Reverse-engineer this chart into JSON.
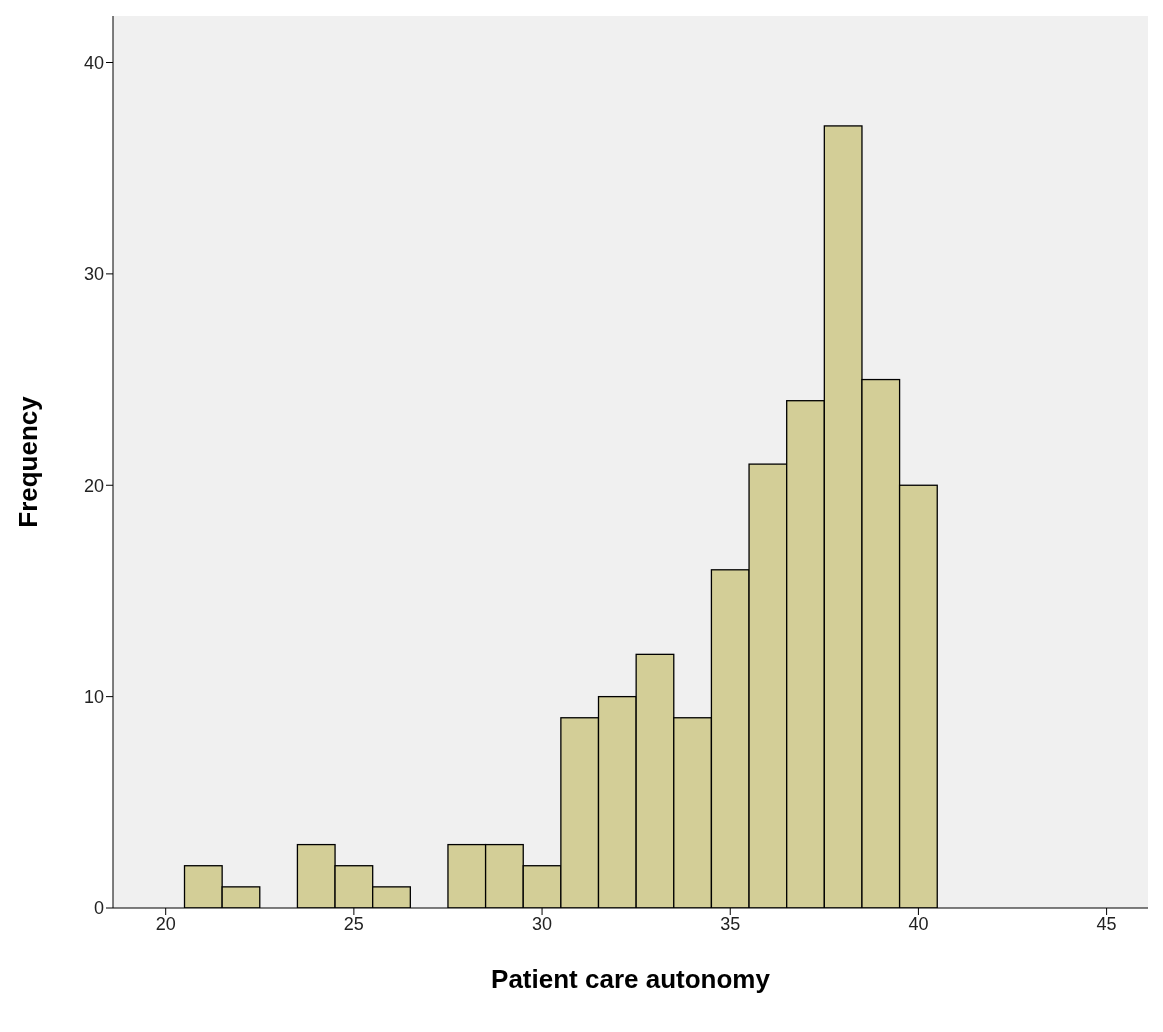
{
  "chart_data": {
    "type": "histogram",
    "xlabel": "Patient care autonomy",
    "ylabel": "Frequency",
    "bins": [
      20.5,
      21.5,
      22.5,
      23.5,
      24.5,
      25.5,
      26.5,
      27.5,
      28.5,
      29.5,
      30.5,
      31.5,
      32.5,
      33.5,
      34.5,
      35.5,
      36.5,
      37.5,
      38.5,
      39.5,
      40.5
    ],
    "values": [
      2,
      1,
      0,
      3,
      2,
      1,
      0,
      3,
      3,
      2,
      9,
      10,
      12,
      9,
      16,
      21,
      24,
      37,
      25,
      20
    ],
    "color": "#d3ce97",
    "xlim": [
      18.6,
      46.1
    ],
    "xticks": [
      20,
      25,
      30,
      35,
      40,
      45
    ],
    "ylim": [
      0,
      42.2
    ],
    "yticks": [
      0,
      10,
      20,
      30,
      40
    ]
  }
}
